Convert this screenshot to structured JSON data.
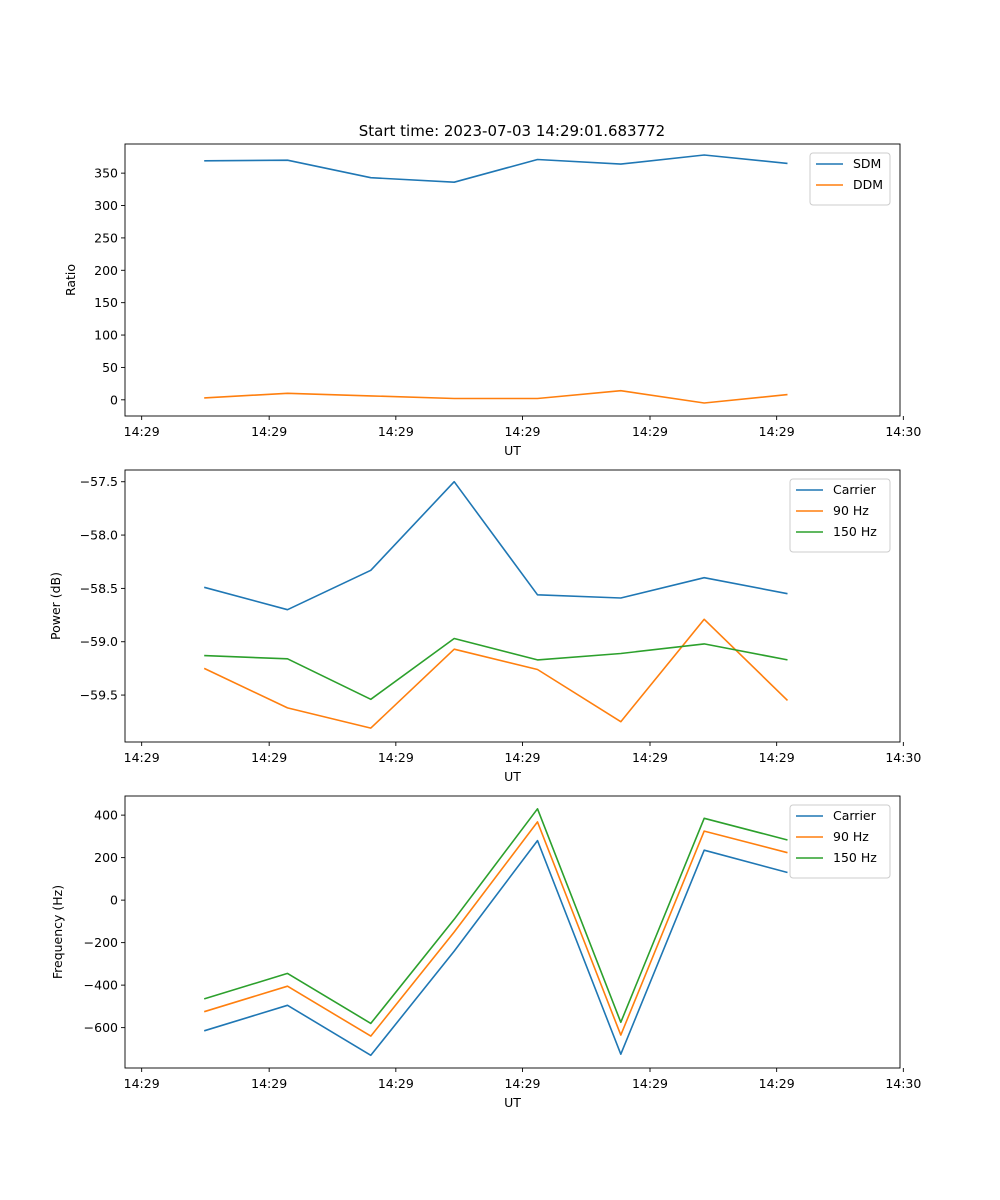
{
  "figure": {
    "title": "Start time: 2023-07-03 14:29:01.683772"
  },
  "colors": {
    "blue": "#1f77b4",
    "orange": "#ff7f0e",
    "green": "#2ca02c",
    "axis": "#000000",
    "legend_border": "#cccccc"
  },
  "chart_data": [
    {
      "type": "line",
      "title": "Start time: 2023-07-03 14:29:01.683772",
      "xlabel": "UT",
      "ylabel": "Ratio",
      "x": [
        0.75,
        1.75,
        2.75,
        3.75,
        4.75,
        5.75,
        6.75,
        7.75
      ],
      "xlim": [
        -0.2,
        9.1
      ],
      "xticks": [
        0,
        1.53,
        3.05,
        4.57,
        6.1,
        7.62,
        9.14
      ],
      "xtick_labels": [
        "14:29",
        "14:29",
        "14:29",
        "14:29",
        "14:29",
        "14:29",
        "14:30"
      ],
      "ylim": [
        -25,
        395
      ],
      "yticks": [
        0,
        50,
        100,
        150,
        200,
        250,
        300,
        350
      ],
      "ytick_labels": [
        "0",
        "50",
        "100",
        "150",
        "200",
        "250",
        "300",
        "350"
      ],
      "legend": "top-right",
      "series": [
        {
          "name": "SDM",
          "color": "#1f77b4",
          "values": [
            369,
            370,
            343,
            336,
            371,
            364,
            378,
            365
          ]
        },
        {
          "name": "DDM",
          "color": "#ff7f0e",
          "values": [
            3,
            10,
            6,
            2,
            2,
            14,
            -5,
            8
          ]
        }
      ]
    },
    {
      "type": "line",
      "xlabel": "UT",
      "ylabel": "Power (dB)",
      "x": [
        0.75,
        1.75,
        2.75,
        3.75,
        4.75,
        5.75,
        6.75,
        7.75
      ],
      "xlim": [
        -0.2,
        9.1
      ],
      "xticks": [
        0,
        1.53,
        3.05,
        4.57,
        6.1,
        7.62,
        9.14
      ],
      "xtick_labels": [
        "14:29",
        "14:29",
        "14:29",
        "14:29",
        "14:29",
        "14:29",
        "14:30"
      ],
      "ylim": [
        -59.94,
        -57.39
      ],
      "yticks": [
        -59.5,
        -59.0,
        -58.5,
        -58.0,
        -57.5
      ],
      "ytick_labels": [
        "−59.5",
        "−59.0",
        "−58.5",
        "−58.0",
        "−57.5"
      ],
      "legend": "top-right",
      "series": [
        {
          "name": "Carrier",
          "color": "#1f77b4",
          "values": [
            -58.49,
            -58.7,
            -58.33,
            -57.5,
            -58.56,
            -58.59,
            -58.4,
            -58.55
          ]
        },
        {
          "name": "90 Hz",
          "color": "#ff7f0e",
          "values": [
            -59.25,
            -59.62,
            -59.81,
            -59.07,
            -59.26,
            -59.75,
            -58.79,
            -59.55
          ]
        },
        {
          "name": "150 Hz",
          "color": "#2ca02c",
          "values": [
            -59.13,
            -59.16,
            -59.54,
            -58.97,
            -59.17,
            -59.11,
            -59.02,
            -59.17
          ]
        }
      ]
    },
    {
      "type": "line",
      "xlabel": "UT",
      "ylabel": "Frequency (Hz)",
      "x": [
        0.75,
        1.75,
        2.75,
        3.75,
        4.75,
        5.75,
        6.75,
        7.75
      ],
      "xlim": [
        -0.2,
        9.1
      ],
      "xticks": [
        0,
        1.53,
        3.05,
        4.57,
        6.1,
        7.62,
        9.14
      ],
      "xtick_labels": [
        "14:29",
        "14:29",
        "14:29",
        "14:29",
        "14:29",
        "14:29",
        "14:30"
      ],
      "ylim": [
        -790,
        490
      ],
      "yticks": [
        -600,
        -400,
        -200,
        0,
        200,
        400
      ],
      "ytick_labels": [
        "−600",
        "−400",
        "−200",
        "0",
        "200",
        "400"
      ],
      "legend": "top-right",
      "series": [
        {
          "name": "Carrier",
          "color": "#1f77b4",
          "values": [
            -615,
            -495,
            -730,
            -240,
            280,
            -725,
            235,
            130
          ]
        },
        {
          "name": "90 Hz",
          "color": "#ff7f0e",
          "values": [
            -525,
            -405,
            -640,
            -150,
            368,
            -635,
            325,
            223
          ]
        },
        {
          "name": "150 Hz",
          "color": "#2ca02c",
          "values": [
            -465,
            -345,
            -580,
            -90,
            430,
            -575,
            385,
            283
          ]
        }
      ]
    }
  ]
}
